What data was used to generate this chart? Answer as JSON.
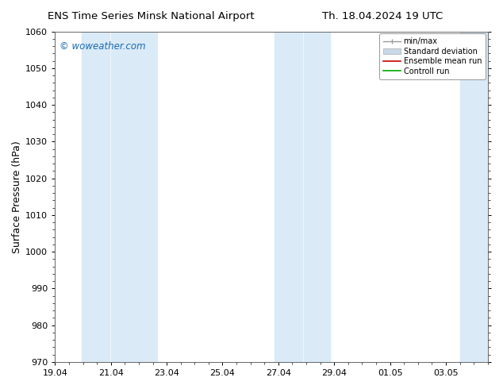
{
  "title_left": "ENS Time Series Minsk National Airport",
  "title_right": "Th. 18.04.2024 19 UTC",
  "ylabel": "Surface Pressure (hPa)",
  "ylim": [
    970,
    1060
  ],
  "yticks": [
    970,
    980,
    990,
    1000,
    1010,
    1020,
    1030,
    1040,
    1050,
    1060
  ],
  "xtick_labels": [
    "19.04",
    "21.04",
    "23.04",
    "25.04",
    "27.04",
    "29.04",
    "01.05",
    "03.05"
  ],
  "xtick_positions": [
    0,
    2,
    4,
    6,
    8,
    10,
    12,
    14
  ],
  "xlim": [
    0,
    15.5
  ],
  "background_color": "#ffffff",
  "band_color": "#daeaf7",
  "watermark_text": "© woweather.com",
  "watermark_color": "#1a6ab0",
  "legend_labels": [
    "min/max",
    "Standard deviation",
    "Ensemble mean run",
    "Controll run"
  ],
  "shaded_bands": [
    {
      "x_start": 0.95,
      "x_end": 1.95
    },
    {
      "x_start": 2.0,
      "x_end": 3.65
    },
    {
      "x_start": 7.85,
      "x_end": 8.85
    },
    {
      "x_start": 8.9,
      "x_end": 9.85
    },
    {
      "x_start": 14.5,
      "x_end": 15.5
    }
  ],
  "title_fontsize": 9.5,
  "tick_fontsize": 8,
  "ylabel_fontsize": 9,
  "legend_fontsize": 7
}
